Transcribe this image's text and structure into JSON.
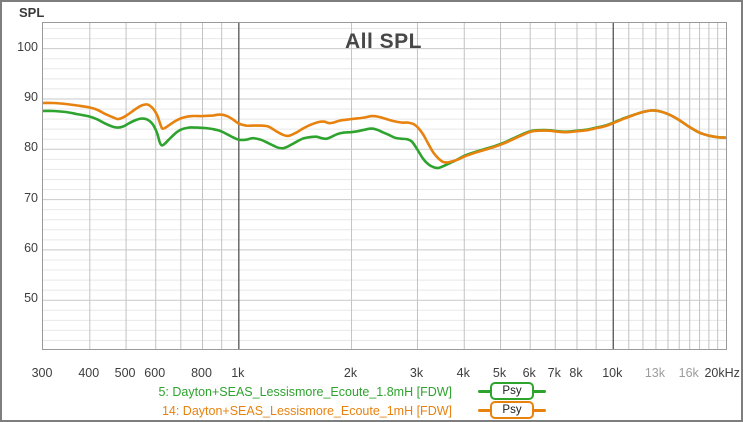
{
  "chart": {
    "title": "All SPL",
    "y_axis_label": "SPL"
  },
  "colors": {
    "green": "#2EA32E",
    "orange": "#E8820F",
    "grid_minor_h": "#e8e8e8",
    "grid_major_h": "#c9c9c9",
    "grid_minor_v": "#c2c2c2",
    "grid_decade_v": "#606060",
    "tick": "#3d3d3d",
    "tick_muted": "#9c9c9c"
  },
  "chart_data": {
    "type": "line",
    "x_scale": "log",
    "x_range": [
      300,
      20000
    ],
    "y_range": [
      40.3,
      105.1
    ],
    "grid": true,
    "legend_position": "bottom",
    "y_ticks": [
      100,
      90,
      80,
      70,
      60,
      50
    ],
    "y_minor_step": 2,
    "x_ticks": [
      {
        "label": "300",
        "f": 300,
        "muted": false
      },
      {
        "label": "400",
        "f": 400,
        "muted": false
      },
      {
        "label": "500",
        "f": 500,
        "muted": false
      },
      {
        "label": "600",
        "f": 600,
        "muted": false
      },
      {
        "label": "800",
        "f": 800,
        "muted": false
      },
      {
        "label": "1k",
        "f": 1000,
        "muted": false
      },
      {
        "label": "2k",
        "f": 2000,
        "muted": false
      },
      {
        "label": "3k",
        "f": 3000,
        "muted": false
      },
      {
        "label": "4k",
        "f": 4000,
        "muted": false
      },
      {
        "label": "5k",
        "f": 5000,
        "muted": false
      },
      {
        "label": "6k",
        "f": 6000,
        "muted": false
      },
      {
        "label": "7k",
        "f": 7000,
        "muted": false
      },
      {
        "label": "8k",
        "f": 8000,
        "muted": false
      },
      {
        "label": "10k",
        "f": 10000,
        "muted": false
      },
      {
        "label": "13k",
        "f": 13000,
        "muted": true
      },
      {
        "label": "16k",
        "f": 16000,
        "muted": true
      },
      {
        "label": "20kHz",
        "f": 20000,
        "muted": false
      }
    ],
    "x_grid_minor": [
      400,
      500,
      600,
      700,
      800,
      900,
      2000,
      3000,
      4000,
      5000,
      6000,
      7000,
      8000,
      9000,
      11000,
      12000,
      13000,
      14000,
      15000,
      16000,
      17000,
      18000,
      19000
    ],
    "x_grid_major": [
      1000,
      10000
    ],
    "series": [
      {
        "name": "5: Dayton+SEAS_Lessismore_Ecoute_1.8mH [FDW]",
        "color": "#2EA32E",
        "smoothing": "Psy",
        "points": [
          [
            300,
            87.6
          ],
          [
            320,
            87.6
          ],
          [
            345,
            87.4
          ],
          [
            370,
            87.0
          ],
          [
            400,
            86.5
          ],
          [
            420,
            85.9
          ],
          [
            440,
            85.1
          ],
          [
            460,
            84.5
          ],
          [
            475,
            84.3
          ],
          [
            490,
            84.5
          ],
          [
            510,
            85.2
          ],
          [
            530,
            85.8
          ],
          [
            550,
            86.1
          ],
          [
            570,
            85.9
          ],
          [
            590,
            84.9
          ],
          [
            605,
            83.2
          ],
          [
            615,
            81.4
          ],
          [
            622,
            80.8
          ],
          [
            632,
            81.0
          ],
          [
            650,
            81.9
          ],
          [
            675,
            83.1
          ],
          [
            700,
            83.9
          ],
          [
            735,
            84.3
          ],
          [
            775,
            84.3
          ],
          [
            815,
            84.2
          ],
          [
            855,
            84.0
          ],
          [
            895,
            83.6
          ],
          [
            935,
            82.9
          ],
          [
            970,
            82.3
          ],
          [
            1000,
            81.9
          ],
          [
            1045,
            81.9
          ],
          [
            1090,
            82.2
          ],
          [
            1145,
            81.9
          ],
          [
            1200,
            81.2
          ],
          [
            1265,
            80.4
          ],
          [
            1310,
            80.2
          ],
          [
            1355,
            80.6
          ],
          [
            1420,
            81.4
          ],
          [
            1480,
            82.1
          ],
          [
            1545,
            82.4
          ],
          [
            1610,
            82.5
          ],
          [
            1665,
            82.2
          ],
          [
            1715,
            82.1
          ],
          [
            1770,
            82.5
          ],
          [
            1830,
            83.0
          ],
          [
            1900,
            83.3
          ],
          [
            1990,
            83.4
          ],
          [
            2080,
            83.6
          ],
          [
            2170,
            83.9
          ],
          [
            2260,
            84.1
          ],
          [
            2340,
            83.9
          ],
          [
            2420,
            83.4
          ],
          [
            2510,
            82.9
          ],
          [
            2610,
            82.3
          ],
          [
            2710,
            82.1
          ],
          [
            2810,
            82.0
          ],
          [
            2900,
            81.5
          ],
          [
            3000,
            79.9
          ],
          [
            3100,
            78.2
          ],
          [
            3210,
            77.0
          ],
          [
            3320,
            76.4
          ],
          [
            3420,
            76.3
          ],
          [
            3530,
            76.7
          ],
          [
            3670,
            77.3
          ],
          [
            3820,
            77.9
          ],
          [
            4000,
            78.7
          ],
          [
            4250,
            79.4
          ],
          [
            4520,
            80.0
          ],
          [
            4800,
            80.6
          ],
          [
            5060,
            81.2
          ],
          [
            5350,
            82.0
          ],
          [
            5650,
            82.8
          ],
          [
            6000,
            83.6
          ],
          [
            6350,
            83.8
          ],
          [
            6700,
            83.8
          ],
          [
            7100,
            83.6
          ],
          [
            7500,
            83.5
          ],
          [
            8000,
            83.7
          ],
          [
            8500,
            83.9
          ],
          [
            9000,
            84.3
          ],
          [
            9500,
            84.7
          ],
          [
            10000,
            85.3
          ],
          [
            10700,
            86.2
          ],
          [
            11400,
            86.9
          ],
          [
            12000,
            87.4
          ],
          [
            12600,
            87.7
          ],
          [
            13200,
            87.6
          ],
          [
            14000,
            87.0
          ],
          [
            15000,
            85.8
          ],
          [
            16000,
            84.4
          ],
          [
            17000,
            83.3
          ],
          [
            18000,
            82.7
          ],
          [
            19000,
            82.4
          ],
          [
            20000,
            82.3
          ]
        ]
      },
      {
        "name": "14: Dayton+SEAS_Lessismore_Ecoute_1mH [FDW]",
        "color": "#E8820F",
        "smoothing": "Psy",
        "points": [
          [
            300,
            89.2
          ],
          [
            320,
            89.2
          ],
          [
            345,
            89.0
          ],
          [
            370,
            88.7
          ],
          [
            400,
            88.3
          ],
          [
            420,
            87.8
          ],
          [
            440,
            87.0
          ],
          [
            460,
            86.4
          ],
          [
            475,
            86.0
          ],
          [
            490,
            86.3
          ],
          [
            510,
            87.1
          ],
          [
            530,
            88.0
          ],
          [
            550,
            88.7
          ],
          [
            570,
            88.9
          ],
          [
            590,
            88.1
          ],
          [
            605,
            86.8
          ],
          [
            617,
            85.0
          ],
          [
            625,
            84.1
          ],
          [
            637,
            84.3
          ],
          [
            655,
            84.9
          ],
          [
            680,
            85.7
          ],
          [
            710,
            86.3
          ],
          [
            750,
            86.6
          ],
          [
            800,
            86.6
          ],
          [
            850,
            86.7
          ],
          [
            890,
            86.9
          ],
          [
            930,
            86.6
          ],
          [
            970,
            85.8
          ],
          [
            1000,
            85.1
          ],
          [
            1045,
            84.7
          ],
          [
            1090,
            84.7
          ],
          [
            1145,
            84.7
          ],
          [
            1200,
            84.5
          ],
          [
            1265,
            83.5
          ],
          [
            1320,
            82.8
          ],
          [
            1365,
            82.7
          ],
          [
            1430,
            83.4
          ],
          [
            1490,
            84.2
          ],
          [
            1560,
            84.9
          ],
          [
            1630,
            85.4
          ],
          [
            1690,
            85.5
          ],
          [
            1740,
            85.2
          ],
          [
            1790,
            85.3
          ],
          [
            1860,
            85.7
          ],
          [
            1950,
            85.9
          ],
          [
            2050,
            86.1
          ],
          [
            2160,
            86.3
          ],
          [
            2260,
            86.6
          ],
          [
            2350,
            86.5
          ],
          [
            2430,
            86.2
          ],
          [
            2530,
            85.8
          ],
          [
            2630,
            85.5
          ],
          [
            2730,
            85.3
          ],
          [
            2830,
            85.3
          ],
          [
            2930,
            85.0
          ],
          [
            3010,
            84.3
          ],
          [
            3110,
            82.9
          ],
          [
            3210,
            81.0
          ],
          [
            3310,
            79.3
          ],
          [
            3410,
            78.2
          ],
          [
            3510,
            77.5
          ],
          [
            3610,
            77.4
          ],
          [
            3720,
            77.6
          ],
          [
            3860,
            78.0
          ],
          [
            4020,
            78.6
          ],
          [
            4270,
            79.3
          ],
          [
            4540,
            79.9
          ],
          [
            4820,
            80.5
          ],
          [
            5080,
            81.1
          ],
          [
            5370,
            81.9
          ],
          [
            5670,
            82.7
          ],
          [
            6020,
            83.5
          ],
          [
            6370,
            83.7
          ],
          [
            6720,
            83.7
          ],
          [
            7120,
            83.5
          ],
          [
            7520,
            83.4
          ],
          [
            8020,
            83.6
          ],
          [
            8520,
            83.8
          ],
          [
            9020,
            84.2
          ],
          [
            9520,
            84.6
          ],
          [
            10000,
            85.2
          ],
          [
            10700,
            86.1
          ],
          [
            11400,
            86.9
          ],
          [
            12000,
            87.4
          ],
          [
            12600,
            87.7
          ],
          [
            13200,
            87.6
          ],
          [
            14000,
            87.0
          ],
          [
            15000,
            85.8
          ],
          [
            16000,
            84.4
          ],
          [
            17000,
            83.3
          ],
          [
            18000,
            82.7
          ],
          [
            19000,
            82.4
          ],
          [
            20000,
            82.3
          ]
        ]
      }
    ]
  }
}
